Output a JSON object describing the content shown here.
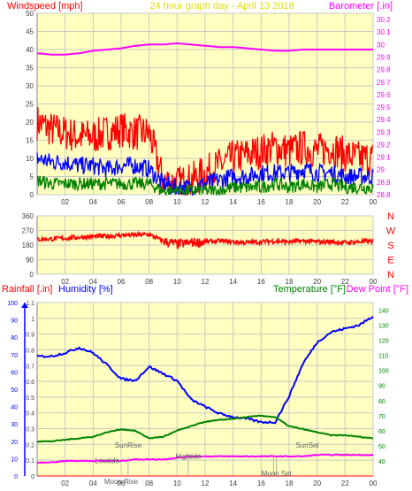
{
  "header": {
    "left_label": "Windspeed [mph]",
    "center_title": "24 hour graph day - April 13 2018",
    "right_label": "Barometer [.in]"
  },
  "colors": {
    "panel_bg": "#ffffc0",
    "outer_bg": "#ffffff",
    "grid": "#c8c8c8",
    "axis_left": "#ff0000",
    "axis_blue": "#0000ff",
    "axis_green": "#008000",
    "axis_magenta": "#ff00ff",
    "title_yellow": "#e0e000",
    "dark_text": "#404040"
  },
  "chart_data": [
    {
      "id": "wind",
      "type": "line",
      "x_ticks": [
        "02",
        "04",
        "06",
        "08",
        "10",
        "12",
        "14",
        "16",
        "18",
        "20",
        "22",
        "00"
      ],
      "y_left": {
        "label": "Windspeed [mph]",
        "ticks": [
          "0",
          "5",
          "10",
          "15",
          "20",
          "25",
          "30",
          "35",
          "40",
          "45",
          "50"
        ],
        "ylim": [
          0,
          50
        ]
      },
      "y_right": {
        "label": "Barometer [.in]",
        "ticks": [
          "28.8",
          "28.9",
          "29",
          "29.1",
          "29.2",
          "29.3",
          "29.4",
          "29.5",
          "29.6",
          "29.7",
          "29.8",
          "29.9",
          "30",
          "30.1",
          "30.2"
        ],
        "ylim": [
          28.8,
          30.25
        ]
      },
      "x": [
        0,
        1,
        2,
        3,
        4,
        5,
        6,
        7,
        8,
        9,
        10,
        11,
        12,
        13,
        14,
        15,
        16,
        17,
        18,
        19,
        20,
        21,
        22,
        23,
        24
      ],
      "series": [
        {
          "name": "Gust",
          "color": "#ff0000",
          "axis": "left",
          "values": [
            20,
            18,
            17,
            16,
            16,
            17,
            18,
            17,
            17,
            4,
            3,
            4,
            6,
            8,
            10,
            11,
            12,
            13,
            12,
            13,
            12,
            13,
            11,
            10,
            10
          ]
        },
        {
          "name": "Average",
          "color": "#0000ff",
          "axis": "left",
          "values": [
            10,
            9,
            9,
            8,
            8,
            7,
            8,
            8,
            7,
            3,
            2,
            2,
            3,
            4,
            5,
            5,
            6,
            6,
            6,
            7,
            6,
            6,
            5,
            5,
            5
          ]
        },
        {
          "name": "Lull",
          "color": "#008000",
          "axis": "left",
          "values": [
            4,
            3,
            3,
            3,
            3,
            3,
            3,
            3,
            3,
            1,
            1,
            1,
            1,
            1,
            2,
            2,
            2,
            3,
            2,
            3,
            2,
            3,
            2,
            2,
            2
          ]
        },
        {
          "name": "Barometer",
          "color": "#ff00ff",
          "axis": "right",
          "values": [
            29.93,
            29.92,
            29.92,
            29.93,
            29.95,
            29.96,
            29.97,
            29.99,
            30.0,
            30.0,
            30.01,
            30.0,
            29.99,
            29.98,
            29.98,
            29.97,
            29.96,
            29.95,
            29.95,
            29.96,
            29.96,
            29.96,
            29.96,
            29.96,
            29.96
          ]
        }
      ]
    },
    {
      "id": "direction",
      "type": "scatter",
      "x_ticks": [
        "02",
        "04",
        "06",
        "08",
        "10",
        "12",
        "14",
        "16",
        "18",
        "20",
        "22",
        "00"
      ],
      "y_left": {
        "ticks": [
          "0",
          "90",
          "180",
          "270",
          "360"
        ],
        "ylim": [
          0,
          360
        ]
      },
      "y_right": {
        "ticks": [
          "N",
          "E",
          "S",
          "W",
          "N"
        ]
      },
      "x": [
        0,
        1,
        2,
        3,
        4,
        5,
        6,
        7,
        8,
        9,
        10,
        11,
        12,
        13,
        14,
        15,
        16,
        17,
        18,
        19,
        20,
        21,
        22,
        23,
        24
      ],
      "series": [
        {
          "name": "Direction",
          "color": "#ff0000",
          "values": [
            215,
            218,
            222,
            228,
            232,
            235,
            240,
            242,
            245,
            205,
            185,
            195,
            200,
            205,
            200,
            195,
            200,
            205,
            200,
            205,
            200,
            200,
            195,
            200,
            205
          ]
        }
      ]
    },
    {
      "id": "climate",
      "type": "line",
      "header": {
        "rain_label": "Rainfall [.in]",
        "humidity_label": "Humidity [%]",
        "temperature_label": "Temperature [°F]",
        "dewpoint_label": "Dew Point [°F]"
      },
      "x_ticks": [
        "02",
        "04",
        "06",
        "08",
        "10",
        "12",
        "14",
        "16",
        "18",
        "20",
        "22",
        "00"
      ],
      "y_far_left": {
        "ticks": [
          "0",
          "10",
          "20",
          "30",
          "40",
          "50",
          "60",
          "70",
          "80",
          "90",
          "100"
        ],
        "ylim": [
          0,
          100
        ]
      },
      "y_left": {
        "ticks": [
          "0",
          "0.1",
          "0.2",
          "0.3",
          "0.4",
          "0.5",
          "0.6",
          "0.7",
          "0.8",
          "0.9",
          "1",
          "1.1"
        ],
        "ylim": [
          0,
          1.1
        ]
      },
      "y_right": {
        "ticks": [
          "40",
          "50",
          "60",
          "70",
          "80",
          "90",
          "100",
          "110",
          "120",
          "130",
          "140"
        ],
        "ylim": [
          30,
          145
        ]
      },
      "x": [
        0,
        1,
        2,
        3,
        4,
        5,
        6,
        7,
        8,
        9,
        10,
        11,
        12,
        13,
        14,
        15,
        16,
        17,
        18,
        19,
        20,
        21,
        22,
        23,
        24
      ],
      "series": [
        {
          "name": "Humidity",
          "color": "#0000ff",
          "axis": "far_left",
          "values": [
            69,
            69,
            71,
            74,
            71,
            64,
            56,
            55,
            63,
            59,
            55,
            44,
            40,
            36,
            34,
            33,
            31,
            31,
            46,
            65,
            77,
            83,
            85,
            87,
            92
          ]
        },
        {
          "name": "Temperature",
          "color": "#008000",
          "axis": "right",
          "values": [
            53,
            53,
            54,
            55,
            56,
            59,
            61,
            60,
            55,
            56,
            60,
            63,
            66,
            67,
            68,
            69,
            70,
            69,
            63,
            61,
            59,
            57,
            57,
            56,
            55
          ]
        },
        {
          "name": "Dew Point",
          "color": "#ff00ff",
          "axis": "right",
          "values": [
            39,
            39,
            40,
            40,
            40,
            40,
            40,
            41,
            41,
            41,
            42,
            43,
            43,
            43,
            43,
            43,
            43,
            43,
            43,
            43,
            44,
            44,
            44,
            44,
            44
          ]
        },
        {
          "name": "Rainfall",
          "color": "#ff0000",
          "axis": "left",
          "values": [
            0,
            0,
            0,
            0,
            0,
            0,
            0,
            0,
            0,
            0,
            0,
            0,
            0,
            0,
            0,
            0,
            0,
            0,
            0,
            0,
            0,
            0,
            0,
            0,
            0
          ]
        }
      ],
      "annotations": [
        {
          "text": "SunRise",
          "x": 6.5,
          "y": 0.18
        },
        {
          "text": "Lowtide",
          "x": 5.0,
          "y": 0.08
        },
        {
          "text": "Moon Rise",
          "x": 6.0,
          "y": -0.05
        },
        {
          "text": "Hightide",
          "x": 10.8,
          "y": 0.11
        },
        {
          "text": "SunSet",
          "x": 19.3,
          "y": 0.18
        },
        {
          "text": "Moon Set",
          "x": 17.1,
          "y": 0.0
        },
        {
          "text": "Moon Set",
          "x": 16.9,
          "y": -0.13
        }
      ]
    }
  ]
}
